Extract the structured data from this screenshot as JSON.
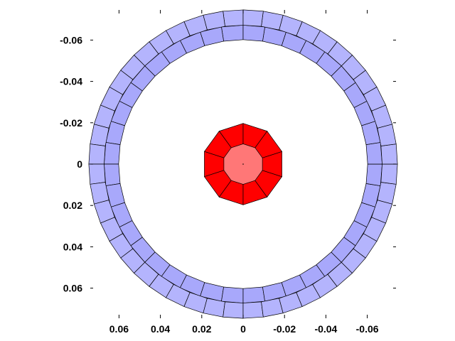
{
  "chart_data": {
    "type": "diagram",
    "title": "",
    "xlabel": "",
    "ylabel": "",
    "x_reversed": true,
    "y_reversed": true,
    "x_ticks": [
      0.06,
      0.04,
      0.02,
      0,
      -0.02,
      -0.04,
      -0.06
    ],
    "x_tick_labels": [
      "0.06",
      "0.04",
      "0.02",
      "0",
      "-0.02",
      "-0.04",
      "-0.06"
    ],
    "y_ticks": [
      -0.06,
      -0.04,
      -0.02,
      0,
      0.02,
      0.04,
      0.06
    ],
    "y_tick_labels": [
      "-0.06",
      "-0.04",
      "-0.02",
      "0",
      "0.02",
      "0.04",
      "0.06"
    ],
    "rings": [
      {
        "name": "",
        "inner_radius": 0.0,
        "outer_radius": 0.0098,
        "segments": 1,
        "color": "#ff7777"
      },
      {
        "name": "",
        "inner_radius": 0.0098,
        "outer_radius": 0.0197,
        "segments": 10,
        "color": "#ff0000"
      },
      {
        "name": "",
        "inner_radius": 0.0602,
        "outer_radius": 0.0672,
        "segments": 40,
        "color": "#a8a8fb"
      },
      {
        "name": "",
        "inner_radius": 0.0672,
        "outer_radius": 0.0746,
        "segments": 48,
        "color": "#b4b4fd"
      }
    ]
  }
}
